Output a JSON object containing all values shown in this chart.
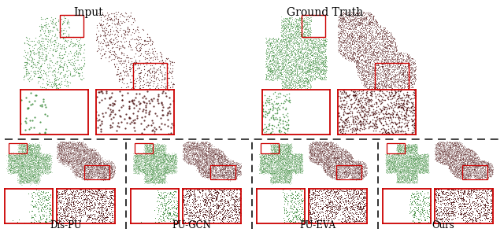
{
  "title_input": "Input",
  "title_gt": "Ground Truth",
  "labels": [
    "Dis-PU",
    "PU-GCN",
    "PU-EVA",
    "Ours"
  ],
  "background_color": "#ffffff",
  "green_color": "#3a8a3a",
  "dark_red_color": "#4a1010",
  "red_box_color": "#cc0000",
  "dashed_line_color": "#222222",
  "figsize": [
    6.4,
    3.0
  ],
  "dpi": 100,
  "n_sparse": 800,
  "n_dense": 4000,
  "seed": 7
}
